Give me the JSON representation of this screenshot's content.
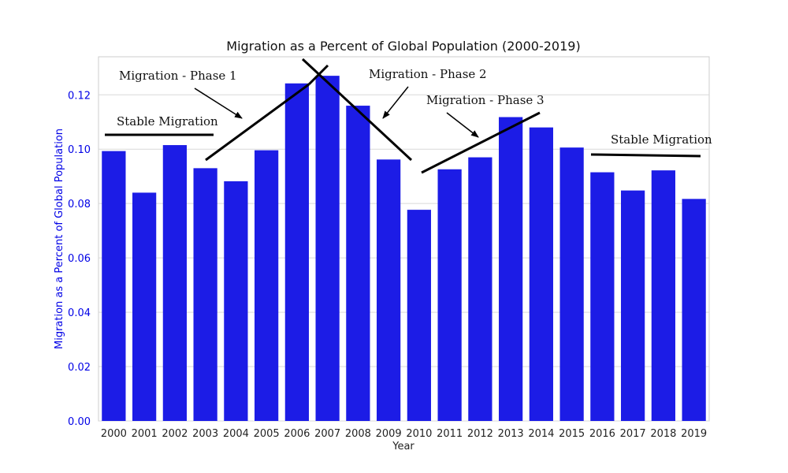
{
  "chart_data": {
    "type": "bar",
    "title": "Migration as a Percent of Global Population (2000-2019)",
    "xlabel": "Year",
    "ylabel": "Migration as a Percent of Global Population",
    "ylim": [
      0,
      0.134
    ],
    "yticks": [
      "0.00",
      "0.02",
      "0.04",
      "0.06",
      "0.08",
      "0.10",
      "0.12"
    ],
    "grid": true,
    "bar_color": "#1c1ce6",
    "ylabel_color": "#0000e6",
    "categories": [
      "2000",
      "2001",
      "2002",
      "2003",
      "2004",
      "2005",
      "2006",
      "2007",
      "2008",
      "2009",
      "2010",
      "2011",
      "2012",
      "2013",
      "2014",
      "2015",
      "2016",
      "2017",
      "2018",
      "2019"
    ],
    "values": [
      0.0993,
      0.084,
      0.1015,
      0.093,
      0.0882,
      0.0996,
      0.1242,
      0.127,
      0.116,
      0.0962,
      0.0777,
      0.0926,
      0.097,
      0.1118,
      0.108,
      0.1006,
      0.0915,
      0.0848,
      0.0922,
      0.0817
    ],
    "annotations": [
      {
        "label": "Stable Migration"
      },
      {
        "label": "Migration - Phase 1"
      },
      {
        "label": "Migration - Phase 2"
      },
      {
        "label": "Migration - Phase 3"
      },
      {
        "label": "Stable Migration"
      }
    ]
  }
}
